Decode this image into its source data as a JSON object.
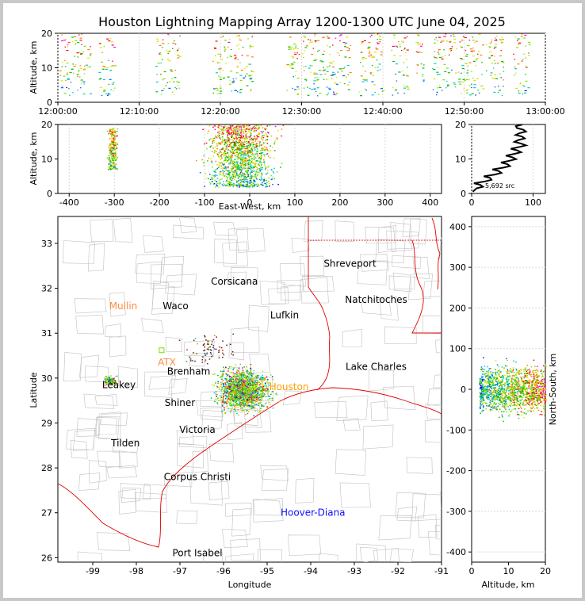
{
  "chart_data": [
    {
      "id": "time_altitude",
      "type": "scatter",
      "title": "Houston Lightning Mapping Array 1200-1300 UTC June 04, 2025",
      "ylabel": "Altitude, km",
      "xlim_minutes": [
        0,
        60
      ],
      "ylim": [
        0,
        20
      ],
      "x_tick_labels": [
        "12:00:00",
        "12:10:00",
        "12:20:00",
        "12:30:00",
        "12:40:00",
        "12:50:00",
        "13:00:00"
      ],
      "y_tick_labels": [
        "0",
        "10",
        "20"
      ],
      "source_clusters_minutes": [
        [
          0,
          4
        ],
        [
          5,
          7
        ],
        [
          12,
          15
        ],
        [
          19,
          24
        ],
        [
          28,
          36
        ],
        [
          37,
          40
        ],
        [
          41,
          43
        ],
        [
          44,
          45
        ],
        [
          46,
          55
        ],
        [
          56,
          58
        ]
      ]
    },
    {
      "id": "eastwest_altitude",
      "type": "scatter",
      "xlabel": "East-West, km",
      "ylabel": "Altitude, km",
      "xlim": [
        -425,
        425
      ],
      "ylim": [
        0,
        20
      ],
      "x_tick_labels": [
        "-400",
        "-300",
        "-200",
        "-100",
        "0",
        "100",
        "200",
        "300",
        "400"
      ],
      "y_tick_labels": [
        "0",
        "10",
        "20"
      ],
      "clusters": [
        {
          "x_center": -305,
          "x_spread": 8,
          "alt_min": 7,
          "alt_max": 19
        },
        {
          "x_center": -20,
          "x_spread": 55,
          "alt_min": 2,
          "alt_max": 20
        }
      ]
    },
    {
      "id": "altitude_histogram",
      "type": "line",
      "xlim": [
        0,
        120
      ],
      "ylim": [
        0,
        20
      ],
      "x_tick_labels": [
        "0",
        "100"
      ],
      "y_tick_labels": [
        "0",
        "10",
        "20"
      ],
      "annotation": "5,692 src",
      "profile": [
        [
          2,
          0.5
        ],
        [
          8,
          1.5
        ],
        [
          14,
          2.5
        ],
        [
          22,
          3.5
        ],
        [
          30,
          4.5
        ],
        [
          38,
          5.5
        ],
        [
          44,
          6.5
        ],
        [
          52,
          7.5
        ],
        [
          58,
          8.5
        ],
        [
          62,
          9.5
        ],
        [
          66,
          10.5
        ],
        [
          70,
          11.5
        ],
        [
          74,
          12.5
        ],
        [
          78,
          13.5
        ],
        [
          80,
          14.5
        ],
        [
          76,
          15.5
        ],
        [
          82,
          16.5
        ],
        [
          78,
          17.5
        ],
        [
          84,
          18.5
        ],
        [
          72,
          19.5
        ]
      ]
    },
    {
      "id": "plan_view",
      "type": "scatter",
      "xlabel": "Longitude",
      "ylabel": "Latitude",
      "xlim": [
        -99.8,
        -91
      ],
      "ylim": [
        25.9,
        33.6
      ],
      "x_tick_labels": [
        "-99",
        "-98",
        "-97",
        "-96",
        "-95",
        "-94",
        "-93",
        "-92",
        "-91"
      ],
      "y_tick_labels": [
        "26",
        "27",
        "28",
        "29",
        "30",
        "31",
        "32",
        "33"
      ],
      "cities": [
        {
          "name": "Shreveport",
          "lon": -93.1,
          "lat": 32.55
        },
        {
          "name": "Corsicana",
          "lon": -95.75,
          "lat": 32.15
        },
        {
          "name": "Mullin",
          "lon": -98.3,
          "lat": 31.6
        },
        {
          "name": "Waco",
          "lon": -97.1,
          "lat": 31.6
        },
        {
          "name": "Natchitoches",
          "lon": -92.5,
          "lat": 31.75
        },
        {
          "name": "Lufkin",
          "lon": -94.6,
          "lat": 31.4
        },
        {
          "name": "ATX",
          "lon": -97.3,
          "lat": 30.35
        },
        {
          "name": "Brenham",
          "lon": -96.8,
          "lat": 30.15
        },
        {
          "name": "Lake Charles",
          "lon": -92.5,
          "lat": 30.25
        },
        {
          "name": "Houston",
          "lon": -94.5,
          "lat": 29.8
        },
        {
          "name": "Leakey",
          "lon": -98.4,
          "lat": 29.85
        },
        {
          "name": "Shiner",
          "lon": -97.0,
          "lat": 29.45
        },
        {
          "name": "Victoria",
          "lon": -96.6,
          "lat": 28.85
        },
        {
          "name": "Tilden",
          "lon": -98.25,
          "lat": 28.55
        },
        {
          "name": "Corpus Christi",
          "lon": -96.6,
          "lat": 27.8
        },
        {
          "name": "Hoover-Diana",
          "lon": -93.95,
          "lat": 27.0
        },
        {
          "name": "Port Isabel",
          "lon": -96.6,
          "lat": 26.1
        }
      ],
      "source_clusters": [
        {
          "lon": -95.55,
          "lat": 29.75,
          "spread_lon": 0.45,
          "spread_lat": 0.35
        },
        {
          "lon": -98.6,
          "lat": 29.95,
          "spread_lon": 0.12,
          "spread_lat": 0.08
        },
        {
          "lon": -96.3,
          "lat": 30.6,
          "spread_lon": 0.4,
          "spread_lat": 0.3
        }
      ]
    },
    {
      "id": "altitude_northsouth",
      "type": "scatter",
      "xlabel": "Altitude, km",
      "ylabel": "North-South, km",
      "xlim": [
        0,
        20
      ],
      "ylim": [
        -425,
        425
      ],
      "x_tick_labels": [
        "0",
        "10",
        "20"
      ],
      "y_tick_labels": [
        "-400",
        "-300",
        "-200",
        "-100",
        "0",
        "100",
        "200",
        "300",
        "400"
      ],
      "clusters": [
        {
          "ns_center": 0,
          "ns_spread": 45,
          "alt_min": 2,
          "alt_max": 20
        }
      ]
    }
  ],
  "colors": {
    "background": "#c8c8c8",
    "panel": "#ffffff",
    "city_label": "#000000",
    "mullin_label": "#ff8a40",
    "atx_label": "#ff8a40",
    "houston_label": "#ffa000",
    "hoover_label": "#1010ff",
    "state_border": "#e00000",
    "county_line": "#b0b0b0",
    "source_palette": [
      "#0000ff",
      "#0060ff",
      "#00c8c8",
      "#00c000",
      "#80e000",
      "#e0e000",
      "#ff8000",
      "#ff0000",
      "#ff00ff"
    ]
  }
}
